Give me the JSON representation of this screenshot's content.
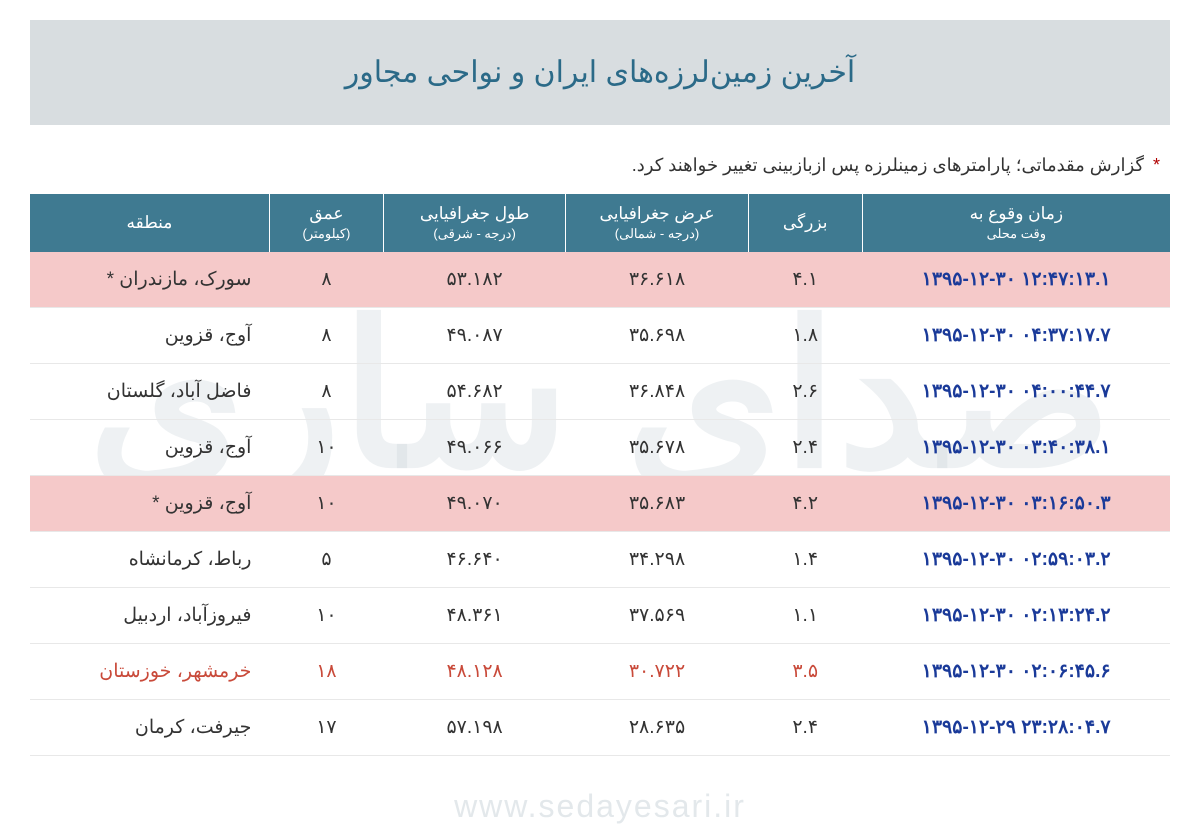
{
  "title": "آخرین زمین‌لرزه‌های ایران و نواحی مجاور",
  "note_prefix": "*",
  "note_text": "گزارش مقدماتی؛ پارامترهای زمینلرزه پس ازبازبینی تغییر خواهند کرد.",
  "watermark": "صدای ساری",
  "watermark_url": "www.sedayesari.ir",
  "columns": {
    "time": "زمان وقوع به",
    "time_sub": "وقت محلی",
    "magnitude": "بزرگی",
    "latitude": "عرض جغرافیایی",
    "latitude_sub": "(درجه - شمالی)",
    "longitude": "طول جغرافیایی",
    "longitude_sub": "(درجه - شرقی)",
    "depth": "عمق",
    "depth_sub": "(کیلومتر)",
    "region": "منطقه"
  },
  "rows": [
    {
      "time": "۱۳۹۵-۱۲-۳۰ ۱۲:۴۷:۱۳.۱",
      "mag": "۴.۱",
      "lat": "۳۶.۶۱۸",
      "lon": "۵۳.۱۸۲",
      "depth": "۸",
      "region": "سورک، مازندران *",
      "highlight": true,
      "red": false
    },
    {
      "time": "۱۳۹۵-۱۲-۳۰ ۰۴:۳۷:۱۷.۷",
      "mag": "۱.۸",
      "lat": "۳۵.۶۹۸",
      "lon": "۴۹.۰۸۷",
      "depth": "۸",
      "region": "آوج، قزوین",
      "highlight": false,
      "red": false
    },
    {
      "time": "۱۳۹۵-۱۲-۳۰ ۰۴:۰۰:۴۴.۷",
      "mag": "۲.۶",
      "lat": "۳۶.۸۴۸",
      "lon": "۵۴.۶۸۲",
      "depth": "۸",
      "region": "فاضل آباد، گلستان",
      "highlight": false,
      "red": false
    },
    {
      "time": "۱۳۹۵-۱۲-۳۰ ۰۳:۴۰:۳۸.۱",
      "mag": "۲.۴",
      "lat": "۳۵.۶۷۸",
      "lon": "۴۹.۰۶۶",
      "depth": "۱۰",
      "region": "آوج، قزوین",
      "highlight": false,
      "red": false
    },
    {
      "time": "۱۳۹۵-۱۲-۳۰ ۰۳:۱۶:۵۰.۳",
      "mag": "۴.۲",
      "lat": "۳۵.۶۸۳",
      "lon": "۴۹.۰۷۰",
      "depth": "۱۰",
      "region": "آوج، قزوین *",
      "highlight": true,
      "red": false
    },
    {
      "time": "۱۳۹۵-۱۲-۳۰ ۰۲:۵۹:۰۳.۲",
      "mag": "۱.۴",
      "lat": "۳۴.۲۹۸",
      "lon": "۴۶.۶۴۰",
      "depth": "۵",
      "region": "رباط، کرمانشاه",
      "highlight": false,
      "red": false
    },
    {
      "time": "۱۳۹۵-۱۲-۳۰ ۰۲:۱۳:۲۴.۲",
      "mag": "۱.۱",
      "lat": "۳۷.۵۶۹",
      "lon": "۴۸.۳۶۱",
      "depth": "۱۰",
      "region": "فیروزآباد، اردبیل",
      "highlight": false,
      "red": false
    },
    {
      "time": "۱۳۹۵-۱۲-۳۰ ۰۲:۰۶:۴۵.۶",
      "mag": "۳.۵",
      "lat": "۳۰.۷۲۲",
      "lon": "۴۸.۱۲۸",
      "depth": "۱۸",
      "region": "خرمشهر، خوزستان",
      "highlight": false,
      "red": true
    },
    {
      "time": "۱۳۹۵-۱۲-۲۹ ۲۳:۲۸:۰۴.۷",
      "mag": "۲.۴",
      "lat": "۲۸.۶۳۵",
      "lon": "۵۷.۱۹۸",
      "depth": "۱۷",
      "region": "جیرفت، کرمان",
      "highlight": false,
      "red": false
    }
  ],
  "style": {
    "header_bg": "#3f7a91",
    "header_text": "#ffffff",
    "title_bg": "#d8dde0",
    "title_text": "#2b6a88",
    "highlight_bg": "#f5c9c9",
    "link_color": "#1a3a99",
    "red_text": "#c94a3a"
  }
}
